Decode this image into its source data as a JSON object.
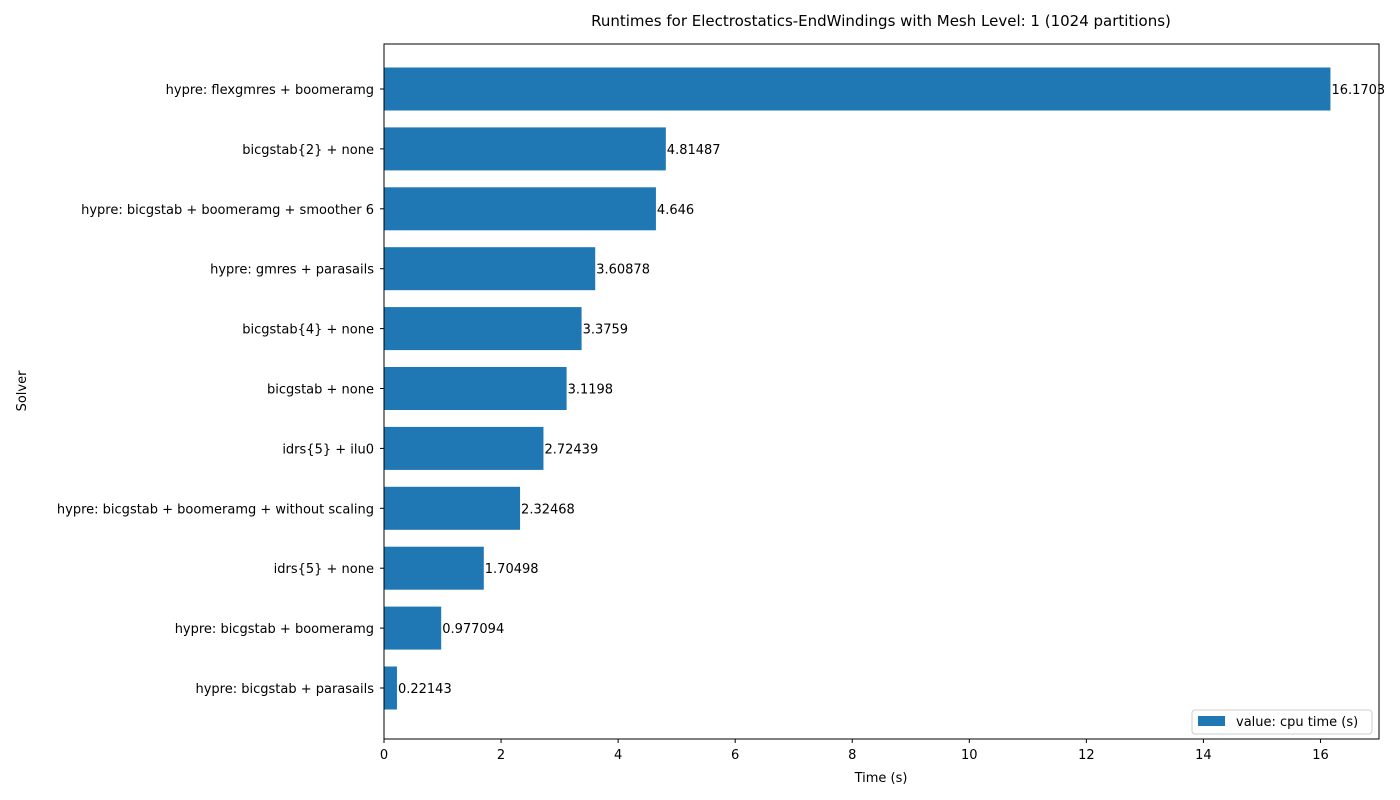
{
  "chart_data": {
    "type": "bar",
    "orientation": "horizontal",
    "title": "Runtimes for Electrostatics-EndWindings with Mesh Level: 1 (1024 partitions)",
    "xlabel": "Time (s)",
    "ylabel": "Solver",
    "xlim": [
      0,
      17
    ],
    "xticks": [
      0,
      2,
      4,
      6,
      8,
      10,
      12,
      14,
      16
    ],
    "grid": false,
    "legend_position": "lower-right",
    "bar_color": "#1f77b4",
    "categories": [
      "hypre: flexgmres + boomeramg",
      "bicgstab{2} + none",
      "hypre: bicgstab + boomeramg + smoother 6",
      "hypre: gmres + parasails",
      "bicgstab{4} + none",
      "bicgstab + none",
      "idrs{5} + ilu0",
      "hypre: bicgstab + boomeramg + without scaling",
      "idrs{5} + none",
      "hypre: bicgstab + boomeramg",
      "hypre: bicgstab + parasails"
    ],
    "series": [
      {
        "name": "value: cpu time (s)",
        "values": [
          16.1703,
          4.81487,
          4.646,
          3.60878,
          3.3759,
          3.1198,
          2.72439,
          2.32468,
          1.70498,
          0.977094,
          0.22143
        ],
        "labels": [
          "16.1703",
          "4.81487",
          "4.646",
          "3.60878",
          "3.3759",
          "3.1198",
          "2.72439",
          "2.32468",
          "1.70498",
          "0.977094",
          "0.22143"
        ]
      }
    ]
  }
}
